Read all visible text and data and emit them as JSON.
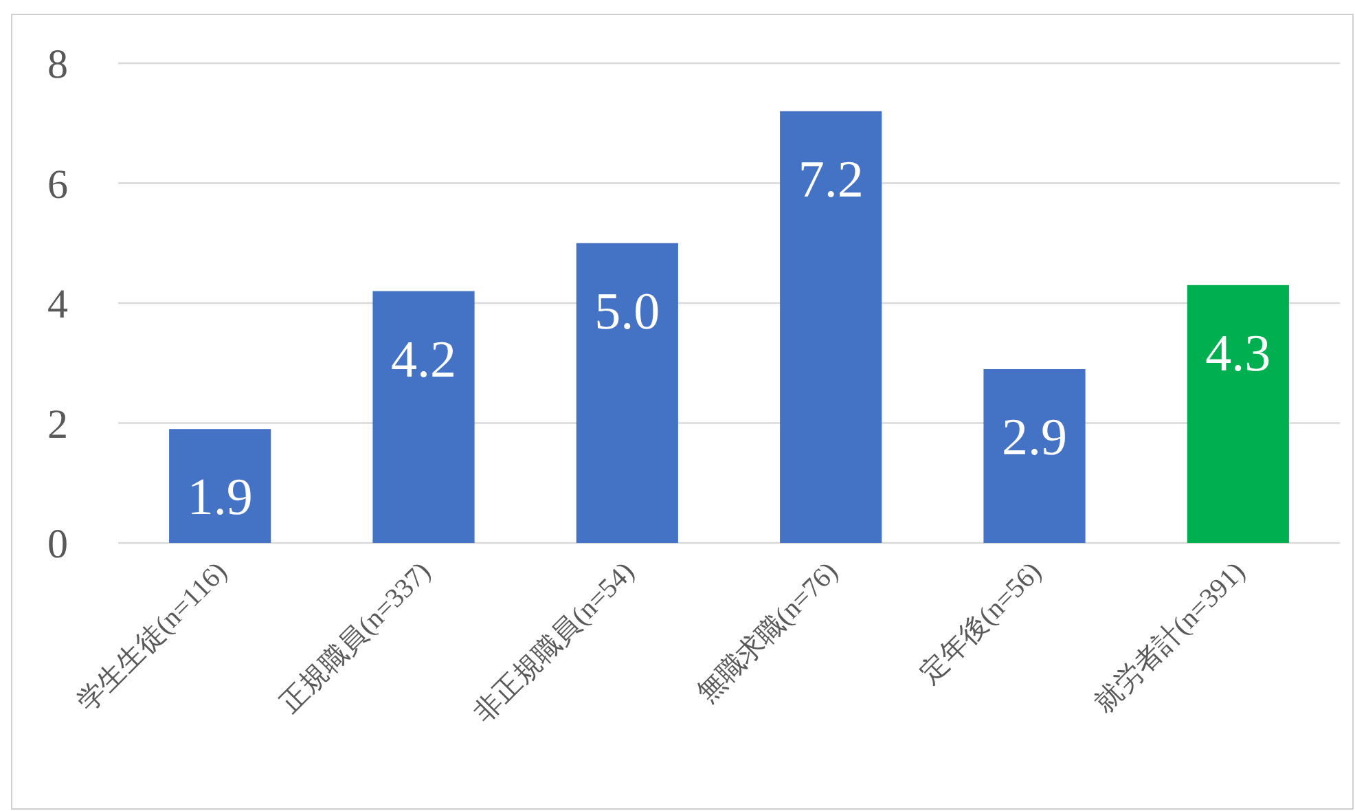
{
  "chart_data": {
    "type": "bar",
    "categories": [
      "学生生徒(n=116)",
      "正規職員(n=337)",
      "非正規職員(n=54)",
      "無職求職(n=76)",
      "定年後(n=56)",
      "就労者計(n=391)"
    ],
    "values": [
      1.9,
      4.2,
      5.0,
      7.2,
      2.9,
      4.3
    ],
    "colors": [
      "#4472c4",
      "#4472c4",
      "#4472c4",
      "#4472c4",
      "#4472c4",
      "#00b050"
    ],
    "value_labels": [
      "1.9",
      "4.2",
      "5.0",
      "7.2",
      "2.9",
      "4.3"
    ],
    "ylim": [
      0,
      8
    ],
    "yticks": [
      0,
      2,
      4,
      6,
      8
    ],
    "grid": "y"
  }
}
